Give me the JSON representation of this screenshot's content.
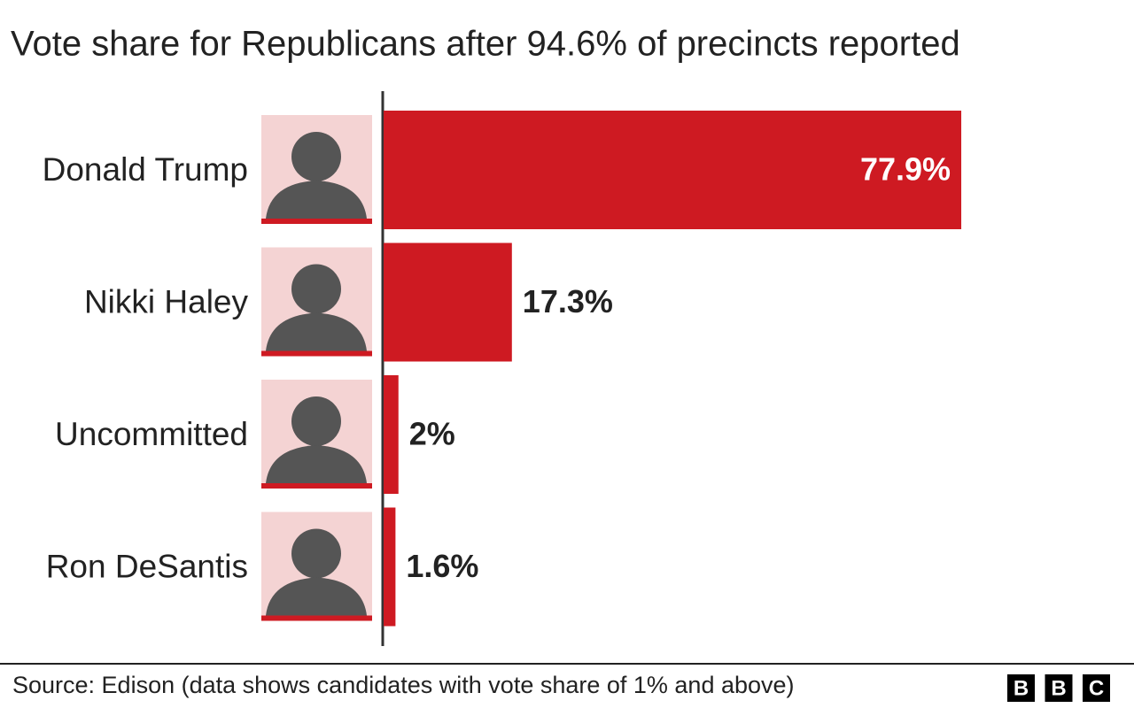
{
  "chart_data": {
    "type": "bar",
    "orientation": "horizontal",
    "title": "Vote share for Republicans after 94.6% of precincts reported",
    "categories": [
      "Donald Trump",
      "Nikki Haley",
      "Uncommitted",
      "Ron DeSantis"
    ],
    "values": [
      77.9,
      17.3,
      2,
      1.6
    ],
    "value_labels": [
      "77.9%",
      "17.3%",
      "2%",
      "1.6%"
    ],
    "color": "#ce1a22",
    "source": "Source: Edison (data shows candidates with vote share of 1% and above)",
    "logo": [
      "B",
      "B",
      "C"
    ]
  }
}
